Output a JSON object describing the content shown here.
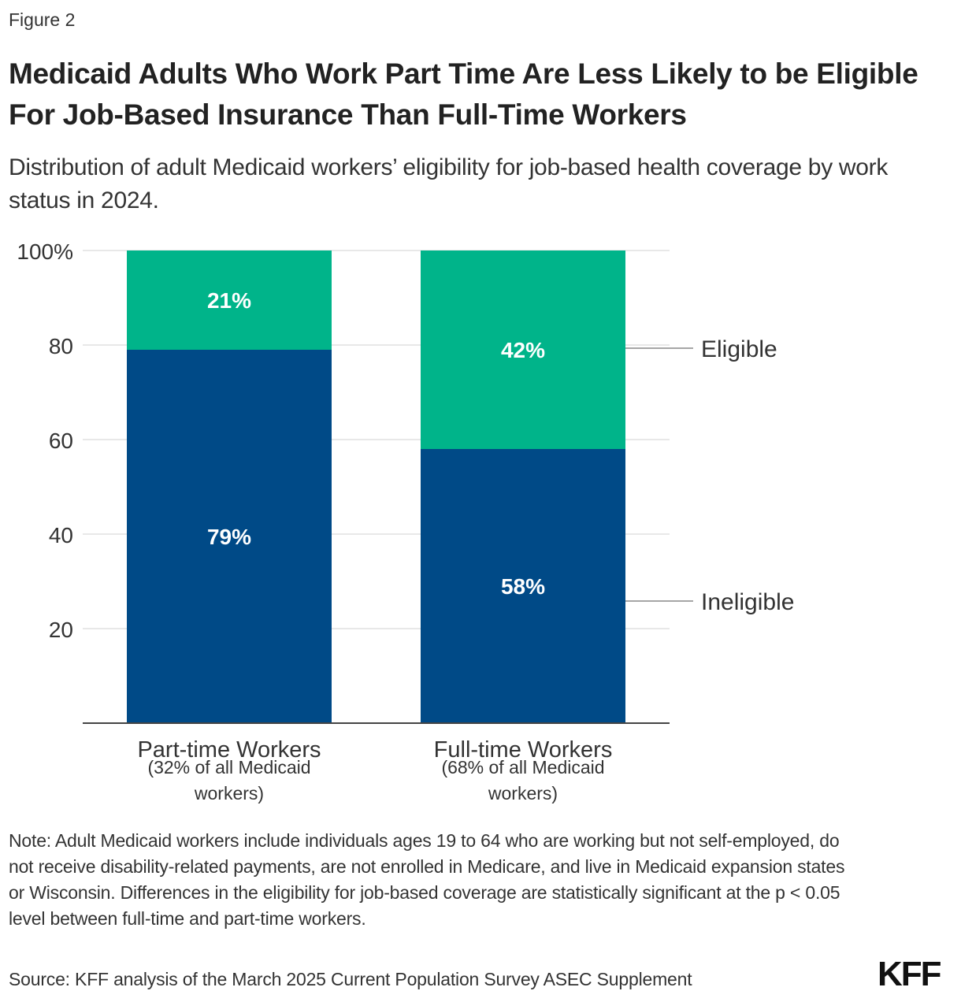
{
  "figure_label": "Figure 2",
  "title": "Medicaid Adults Who Work Part Time Are Less Likely to be Eligible For Job-Based Insurance Than Full-Time Workers",
  "subtitle": "Distribution of adult Medicaid workers’ eligibility for job-based health coverage by work status in 2024.",
  "note": "Note: Adult Medicaid workers include individuals ages 19 to 64 who are working but not self-employed, do not receive disability-related payments, are not enrolled in Medicare, and live in Medicaid expansion states or Wisconsin. Differences in the eligibility for job-based coverage are statistically significant at the p < 0.05 level between full-time and part-time workers.",
  "source": "Source: KFF analysis of the March 2025 Current Population Survey ASEC Supplement",
  "logo": "KFF",
  "chart_data": {
    "type": "bar",
    "stacked": true,
    "categories": [
      "Part-time Workers",
      "Full-time Workers"
    ],
    "category_sublabels": [
      [
        "(32% of all Medicaid",
        "workers)"
      ],
      [
        "(68% of all Medicaid",
        "workers)"
      ]
    ],
    "series": [
      {
        "name": "Ineligible",
        "values": [
          79,
          58
        ],
        "labels": [
          "79%",
          "58%"
        ],
        "color": "#004a87"
      },
      {
        "name": "Eligible",
        "values": [
          21,
          42
        ],
        "labels": [
          "21%",
          "42%"
        ],
        "color": "#00b48a"
      }
    ],
    "ylim": [
      0,
      100
    ],
    "yticks": [
      20,
      40,
      60,
      80,
      100
    ],
    "ytick_labels": [
      "20",
      "40",
      "60",
      "80",
      "100%"
    ],
    "grid": true,
    "legend_placement": "right (direct labels)"
  }
}
